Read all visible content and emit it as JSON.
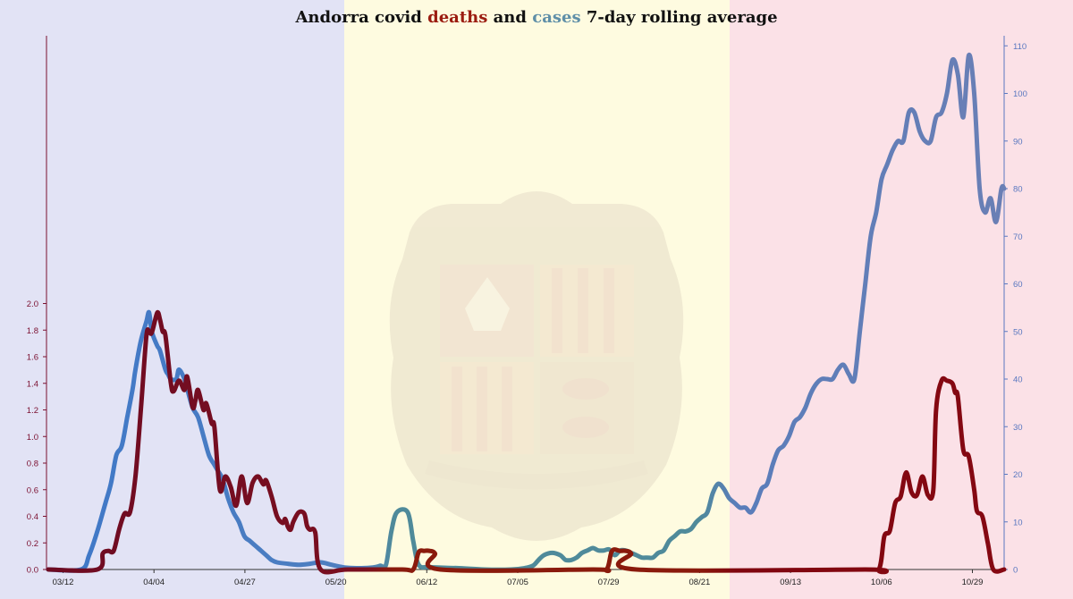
{
  "chart_data": {
    "type": "line",
    "title_parts": [
      {
        "text": "Andorra covid ",
        "role": "plain"
      },
      {
        "text": "deaths",
        "role": "deaths"
      },
      {
        "text": " and ",
        "role": "plain"
      },
      {
        "text": "cases",
        "role": "cases"
      },
      {
        "text": " 7-day rolling average",
        "role": "plain"
      }
    ],
    "colors": {
      "deaths_axis": "#7b1030",
      "cases_axis": "#5a78c0",
      "title_deaths": "#9b1c10",
      "title_cases": "#5f8fa8",
      "title_plain": "#111111",
      "band_left": "#e2e3f5",
      "band_middle": "#fefbe0",
      "band_right": "#fbe1e7",
      "emblem": "#e6ddc8"
    },
    "x_axis": {
      "start_date": "03/05",
      "end_date": "11/05",
      "tick_labels": [
        "03/12",
        "04/04",
        "04/27",
        "05/20",
        "06/12",
        "07/05",
        "07/29",
        "08/21",
        "09/13",
        "10/06",
        "10/29"
      ]
    },
    "y_left": {
      "label": "deaths",
      "ylim": [
        0,
        2.0
      ],
      "ticks": [
        "0.0",
        "0.2",
        "0.4",
        "0.6",
        "0.8",
        "1.0",
        "1.2",
        "1.4",
        "1.6",
        "1.8",
        "2.0"
      ]
    },
    "y_right": {
      "label": "cases",
      "ylim": [
        0,
        112
      ],
      "ticks": [
        "0",
        "10",
        "20",
        "30",
        "40",
        "50",
        "60",
        "70",
        "80",
        "90",
        "100",
        "110"
      ]
    },
    "bands": [
      "#e2e3f5",
      "#fefbe0",
      "#fbe1e7"
    ],
    "series": [
      {
        "name": "cases",
        "axis": "right",
        "points": [
          [
            0,
            0
          ],
          [
            12,
            0
          ],
          [
            15,
            3
          ],
          [
            18,
            8
          ],
          [
            21,
            14
          ],
          [
            23,
            18
          ],
          [
            25,
            24
          ],
          [
            27,
            26
          ],
          [
            29,
            32
          ],
          [
            31,
            38
          ],
          [
            32,
            42
          ],
          [
            34,
            48
          ],
          [
            36,
            52
          ],
          [
            37,
            54
          ],
          [
            38,
            50
          ],
          [
            40,
            47
          ],
          [
            41,
            46
          ],
          [
            43,
            42
          ],
          [
            44,
            41
          ],
          [
            45,
            40
          ],
          [
            47,
            40
          ],
          [
            48,
            42
          ],
          [
            50,
            40
          ],
          [
            51,
            38
          ],
          [
            53,
            34
          ],
          [
            55,
            32
          ],
          [
            57,
            28
          ],
          [
            59,
            24
          ],
          [
            61,
            22
          ],
          [
            62,
            21
          ],
          [
            64,
            19
          ],
          [
            66,
            15
          ],
          [
            68,
            12
          ],
          [
            70,
            10
          ],
          [
            72,
            7
          ],
          [
            74,
            6
          ],
          [
            76,
            5
          ],
          [
            78,
            4
          ],
          [
            80,
            3
          ],
          [
            82,
            2
          ],
          [
            84,
            1.5
          ],
          [
            88,
            1.2
          ],
          [
            92,
            1
          ],
          [
            96,
            1.2
          ],
          [
            100,
            1.5
          ],
          [
            104,
            1
          ],
          [
            108,
            0.5
          ],
          [
            112,
            0.3
          ],
          [
            116,
            0.3
          ],
          [
            120,
            0.5
          ],
          [
            122,
            0.8
          ],
          [
            124,
            1
          ],
          [
            126,
            8
          ],
          [
            128,
            12
          ],
          [
            132,
            12
          ],
          [
            134,
            6
          ],
          [
            136,
            1
          ],
          [
            140,
            0.5
          ],
          [
            150,
            0.3
          ],
          [
            160,
            0
          ],
          [
            170,
            0
          ],
          [
            175,
            0.3
          ],
          [
            178,
            0.8
          ],
          [
            180,
            2
          ],
          [
            182,
            3
          ],
          [
            185,
            3.5
          ],
          [
            188,
            3
          ],
          [
            190,
            2
          ],
          [
            192,
            2
          ],
          [
            194,
            2.5
          ],
          [
            196,
            3.5
          ],
          [
            198,
            4
          ],
          [
            200,
            4.5
          ],
          [
            202,
            4
          ],
          [
            204,
            4
          ],
          [
            206,
            4.2
          ],
          [
            208,
            3
          ],
          [
            210,
            4
          ],
          [
            212,
            4
          ],
          [
            214,
            3.5
          ],
          [
            216,
            3
          ],
          [
            218,
            2.5
          ],
          [
            220,
            2.5
          ],
          [
            222,
            2.5
          ],
          [
            224,
            3.5
          ],
          [
            226,
            4
          ],
          [
            228,
            6
          ],
          [
            230,
            7
          ],
          [
            232,
            8
          ],
          [
            234,
            8
          ],
          [
            236,
            8.5
          ],
          [
            238,
            10
          ],
          [
            240,
            11
          ],
          [
            242,
            12
          ],
          [
            244,
            16
          ],
          [
            246,
            18
          ],
          [
            248,
            17
          ],
          [
            250,
            15
          ],
          [
            252,
            14
          ],
          [
            254,
            13
          ],
          [
            256,
            13
          ],
          [
            258,
            12
          ],
          [
            260,
            14
          ],
          [
            262,
            17
          ],
          [
            264,
            18
          ],
          [
            266,
            22
          ],
          [
            268,
            25
          ],
          [
            270,
            26
          ],
          [
            272,
            28
          ],
          [
            274,
            31
          ],
          [
            276,
            32
          ],
          [
            278,
            34
          ],
          [
            280,
            37
          ],
          [
            282,
            39
          ],
          [
            284,
            40
          ],
          [
            286,
            40
          ],
          [
            288,
            40
          ],
          [
            290,
            42
          ],
          [
            292,
            43
          ],
          [
            294,
            41
          ],
          [
            296,
            40
          ],
          [
            298,
            50
          ],
          [
            300,
            60
          ],
          [
            302,
            70
          ],
          [
            304,
            75
          ],
          [
            306,
            82
          ],
          [
            308,
            85
          ],
          [
            310,
            88
          ],
          [
            312,
            90
          ],
          [
            314,
            90
          ],
          [
            316,
            96
          ],
          [
            318,
            96
          ],
          [
            320,
            92
          ],
          [
            322,
            90
          ],
          [
            324,
            90
          ],
          [
            326,
            95
          ],
          [
            328,
            96
          ],
          [
            330,
            100
          ],
          [
            332,
            107
          ],
          [
            334,
            104
          ],
          [
            336,
            95
          ],
          [
            338,
            108
          ],
          [
            340,
            100
          ],
          [
            342,
            80
          ],
          [
            344,
            75
          ],
          [
            346,
            78
          ],
          [
            348,
            73
          ],
          [
            350,
            80
          ],
          [
            351,
            80
          ]
        ]
      },
      {
        "name": "deaths",
        "axis": "left",
        "points": [
          [
            0,
            0
          ],
          [
            18,
            0
          ],
          [
            20,
            0.12
          ],
          [
            22,
            0.14
          ],
          [
            24,
            0.14
          ],
          [
            26,
            0.3
          ],
          [
            28,
            0.42
          ],
          [
            30,
            0.43
          ],
          [
            32,
            0.7
          ],
          [
            34,
            1.2
          ],
          [
            36,
            1.75
          ],
          [
            37,
            1.79
          ],
          [
            38,
            1.78
          ],
          [
            40,
            1.93
          ],
          [
            41,
            1.88
          ],
          [
            42,
            1.79
          ],
          [
            43,
            1.76
          ],
          [
            45,
            1.4
          ],
          [
            46,
            1.34
          ],
          [
            48,
            1.42
          ],
          [
            50,
            1.35
          ],
          [
            51,
            1.45
          ],
          [
            53,
            1.22
          ],
          [
            54,
            1.27
          ],
          [
            55,
            1.35
          ],
          [
            57,
            1.2
          ],
          [
            58,
            1.25
          ],
          [
            60,
            1.1
          ],
          [
            61,
            1.07
          ],
          [
            63,
            0.6
          ],
          [
            65,
            0.7
          ],
          [
            67,
            0.62
          ],
          [
            69,
            0.48
          ],
          [
            71,
            0.7
          ],
          [
            73,
            0.5
          ],
          [
            75,
            0.65
          ],
          [
            77,
            0.7
          ],
          [
            79,
            0.64
          ],
          [
            80,
            0.67
          ],
          [
            82,
            0.55
          ],
          [
            84,
            0.4
          ],
          [
            86,
            0.35
          ],
          [
            87,
            0.38
          ],
          [
            88,
            0.32
          ],
          [
            89,
            0.3
          ],
          [
            90,
            0.36
          ],
          [
            92,
            0.43
          ],
          [
            94,
            0.42
          ],
          [
            95,
            0.33
          ],
          [
            96,
            0.3
          ],
          [
            98,
            0.28
          ],
          [
            100,
            0
          ],
          [
            110,
            0
          ],
          [
            130,
            0
          ],
          [
            134,
            0
          ],
          [
            136,
            0.13
          ],
          [
            138,
            0.14
          ],
          [
            140,
            0.14
          ],
          [
            142,
            0.12
          ],
          [
            144,
            0
          ],
          [
            200,
            0
          ],
          [
            205,
            0
          ],
          [
            207,
            0.14
          ],
          [
            210,
            0.14
          ],
          [
            212,
            0.14
          ],
          [
            214,
            0.12
          ],
          [
            216,
            0
          ],
          [
            300,
            0
          ],
          [
            305,
            0
          ],
          [
            307,
            0.25
          ],
          [
            309,
            0.29
          ],
          [
            311,
            0.5
          ],
          [
            313,
            0.55
          ],
          [
            315,
            0.73
          ],
          [
            317,
            0.58
          ],
          [
            319,
            0.56
          ],
          [
            321,
            0.7
          ],
          [
            323,
            0.56
          ],
          [
            325,
            0.6
          ],
          [
            326,
            1.2
          ],
          [
            328,
            1.42
          ],
          [
            330,
            1.42
          ],
          [
            332,
            1.4
          ],
          [
            333,
            1.33
          ],
          [
            334,
            1.3
          ],
          [
            336,
            0.9
          ],
          [
            338,
            0.85
          ],
          [
            340,
            0.6
          ],
          [
            341,
            0.44
          ],
          [
            343,
            0.4
          ],
          [
            345,
            0.2
          ],
          [
            347,
            0
          ],
          [
            351,
            0
          ]
        ]
      }
    ]
  }
}
